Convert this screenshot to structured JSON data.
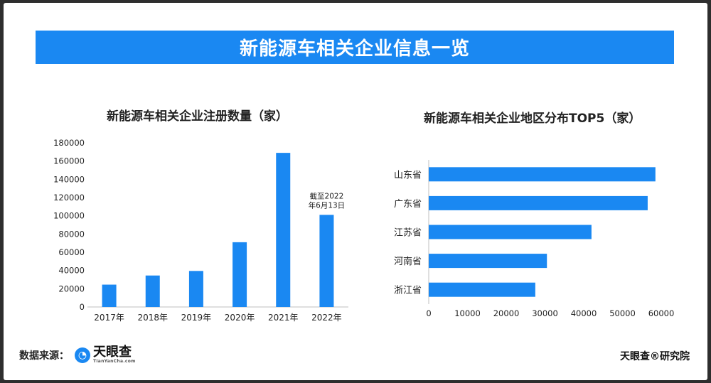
{
  "banner": {
    "title": "新能源车相关企业信息一览"
  },
  "footer": {
    "source_label": "数据来源：",
    "logo_cn": "天眼查",
    "logo_en": "TianYanCha.com",
    "credit": "天眼查®研究院"
  },
  "colors": {
    "bar": "#1a88f2",
    "banner": "#1a88f2"
  },
  "chart_data": [
    {
      "type": "bar",
      "title": "新能源车相关企业注册数量（家）",
      "categories": [
        "2017年",
        "2018年",
        "2019年",
        "2020年",
        "2021年",
        "2022年"
      ],
      "values": [
        24500,
        34500,
        39500,
        71000,
        169000,
        101000
      ],
      "ylim": [
        0,
        180000
      ],
      "yticks": [
        0,
        20000,
        40000,
        60000,
        80000,
        100000,
        120000,
        140000,
        160000,
        180000
      ],
      "annotation": {
        "category": "2022年",
        "lines": [
          "截至2022",
          "年6月13日"
        ]
      },
      "grid": false
    },
    {
      "type": "bar",
      "orientation": "horizontal",
      "title": "新能源车相关企业地区分布TOP5（家）",
      "categories": [
        "山东省",
        "广东省",
        "江苏省",
        "河南省",
        "浙江省"
      ],
      "values": [
        58500,
        56500,
        42000,
        30500,
        27500
      ],
      "xlim": [
        0,
        60000
      ],
      "xticks": [
        0,
        10000,
        20000,
        30000,
        40000,
        50000,
        60000
      ],
      "grid": false
    }
  ]
}
